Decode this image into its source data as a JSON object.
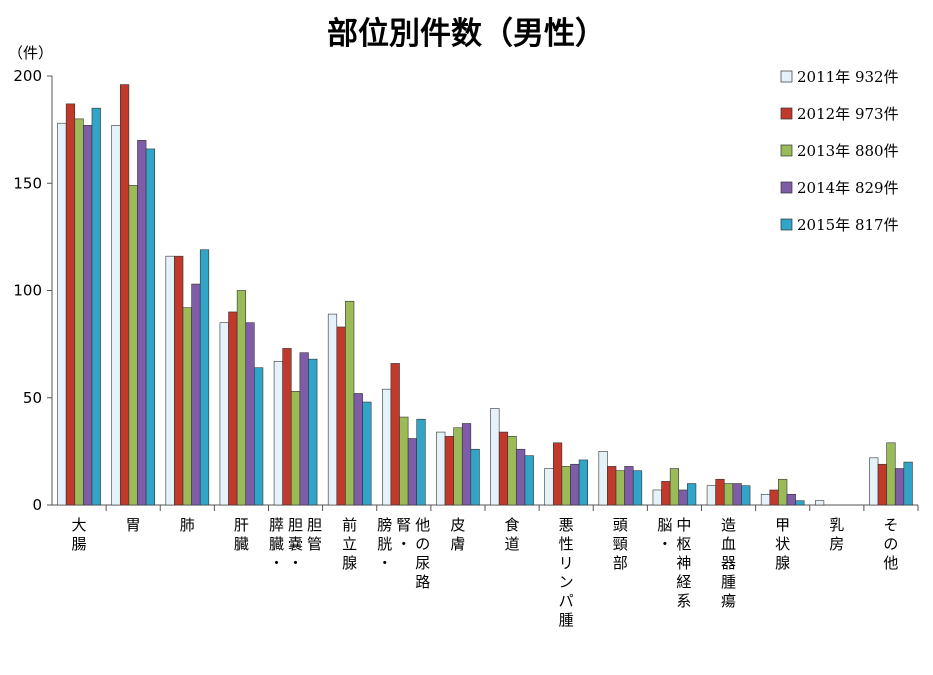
{
  "chart_data": {
    "type": "bar",
    "title": "部位別件数（男性）",
    "ylabel": "（件）",
    "xlabel": "",
    "ylim": [
      0,
      200
    ],
    "yticks": [
      "0",
      "50",
      "100",
      "150",
      "200"
    ],
    "grid": false,
    "legend_position": "top-right",
    "categories": [
      "大腸",
      "胃",
      "肺",
      "肝臓",
      "膵臓・胆嚢・胆管",
      "前立腺",
      "膀胱・腎・他の尿路",
      "皮膚",
      "食道",
      "悪性リンパ腫",
      "頭頸部",
      "脳・中枢神経系",
      "造血器腫瘍",
      "甲状腺",
      "乳房",
      "その他"
    ],
    "series": [
      {
        "name": "2011年 932件",
        "color": "#e6f2fa",
        "values": [
          178,
          177,
          116,
          85,
          67,
          89,
          54,
          34,
          45,
          17,
          25,
          7,
          9,
          5,
          2,
          22
        ]
      },
      {
        "name": "2012年 973件",
        "color": "#c0392b",
        "values": [
          187,
          196,
          116,
          90,
          73,
          83,
          66,
          32,
          34,
          29,
          18,
          11,
          12,
          7,
          0,
          19
        ]
      },
      {
        "name": "2013年 880件",
        "color": "#9bbb59",
        "values": [
          180,
          149,
          92,
          100,
          53,
          95,
          41,
          36,
          32,
          18,
          16,
          17,
          10,
          12,
          0,
          29
        ]
      },
      {
        "name": "2014年 829件",
        "color": "#7e5ca8",
        "values": [
          177,
          170,
          103,
          85,
          71,
          52,
          31,
          38,
          26,
          19,
          18,
          7,
          10,
          5,
          0,
          17
        ]
      },
      {
        "name": "2015年 817件",
        "color": "#31a5c8",
        "values": [
          185,
          166,
          119,
          64,
          68,
          48,
          40,
          26,
          23,
          21,
          16,
          10,
          9,
          2,
          0,
          20
        ]
      }
    ]
  }
}
